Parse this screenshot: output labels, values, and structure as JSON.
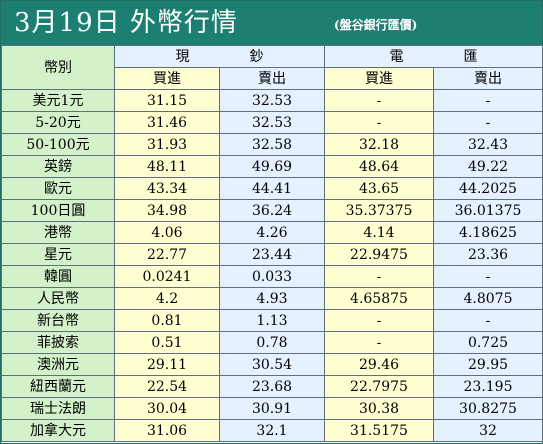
{
  "header": {
    "title": "3月19日 外幣行情",
    "subtitle": "(盤谷銀行匯價)"
  },
  "table": {
    "currency_header": "幣別",
    "cash_header": "現鈔",
    "tt_header": "電匯",
    "buy_label": "買進",
    "sell_label": "賣出",
    "rows": [
      {
        "currency": "美元1元",
        "cash_buy": "31.15",
        "cash_sell": "32.53",
        "tt_buy": "-",
        "tt_sell": "-"
      },
      {
        "currency": "5-20元",
        "cash_buy": "31.46",
        "cash_sell": "32.53",
        "tt_buy": "-",
        "tt_sell": "-"
      },
      {
        "currency": "50-100元",
        "cash_buy": "31.93",
        "cash_sell": "32.58",
        "tt_buy": "32.18",
        "tt_sell": "32.43"
      },
      {
        "currency": "英鎊",
        "cash_buy": "48.11",
        "cash_sell": "49.69",
        "tt_buy": "48.64",
        "tt_sell": "49.22"
      },
      {
        "currency": "歐元",
        "cash_buy": "43.34",
        "cash_sell": "44.41",
        "tt_buy": "43.65",
        "tt_sell": "44.2025"
      },
      {
        "currency": "100日圓",
        "cash_buy": "34.98",
        "cash_sell": "36.24",
        "tt_buy": "35.37375",
        "tt_sell": "36.01375"
      },
      {
        "currency": "港幣",
        "cash_buy": "4.06",
        "cash_sell": "4.26",
        "tt_buy": "4.14",
        "tt_sell": "4.18625"
      },
      {
        "currency": "星元",
        "cash_buy": "22.77",
        "cash_sell": "23.44",
        "tt_buy": "22.9475",
        "tt_sell": "23.36"
      },
      {
        "currency": "韓圓",
        "cash_buy": "0.0241",
        "cash_sell": "0.033",
        "tt_buy": "-",
        "tt_sell": "-"
      },
      {
        "currency": "人民幣",
        "cash_buy": "4.2",
        "cash_sell": "4.93",
        "tt_buy": "4.65875",
        "tt_sell": "4.8075"
      },
      {
        "currency": "新台幣",
        "cash_buy": "0.81",
        "cash_sell": "1.13",
        "tt_buy": "-",
        "tt_sell": "-"
      },
      {
        "currency": "菲披索",
        "cash_buy": "0.51",
        "cash_sell": "0.78",
        "tt_buy": "-",
        "tt_sell": "0.725"
      },
      {
        "currency": "澳洲元",
        "cash_buy": "29.11",
        "cash_sell": "30.54",
        "tt_buy": "29.46",
        "tt_sell": "29.95"
      },
      {
        "currency": "紐西蘭元",
        "cash_buy": "22.54",
        "cash_sell": "23.68",
        "tt_buy": "22.7975",
        "tt_sell": "23.195"
      },
      {
        "currency": "瑞士法朗",
        "cash_buy": "30.04",
        "cash_sell": "30.91",
        "tt_buy": "30.38",
        "tt_sell": "30.8275"
      },
      {
        "currency": "加拿大元",
        "cash_buy": "31.06",
        "cash_sell": "32.1",
        "tt_buy": "31.5175",
        "tt_sell": "32"
      }
    ]
  },
  "colors": {
    "header_bg": "#1d7f72",
    "currency_col_bg": "#d3f2c9",
    "buy_col_bg": "#ffffd1",
    "sell_col_bg": "#e6f1ff"
  }
}
